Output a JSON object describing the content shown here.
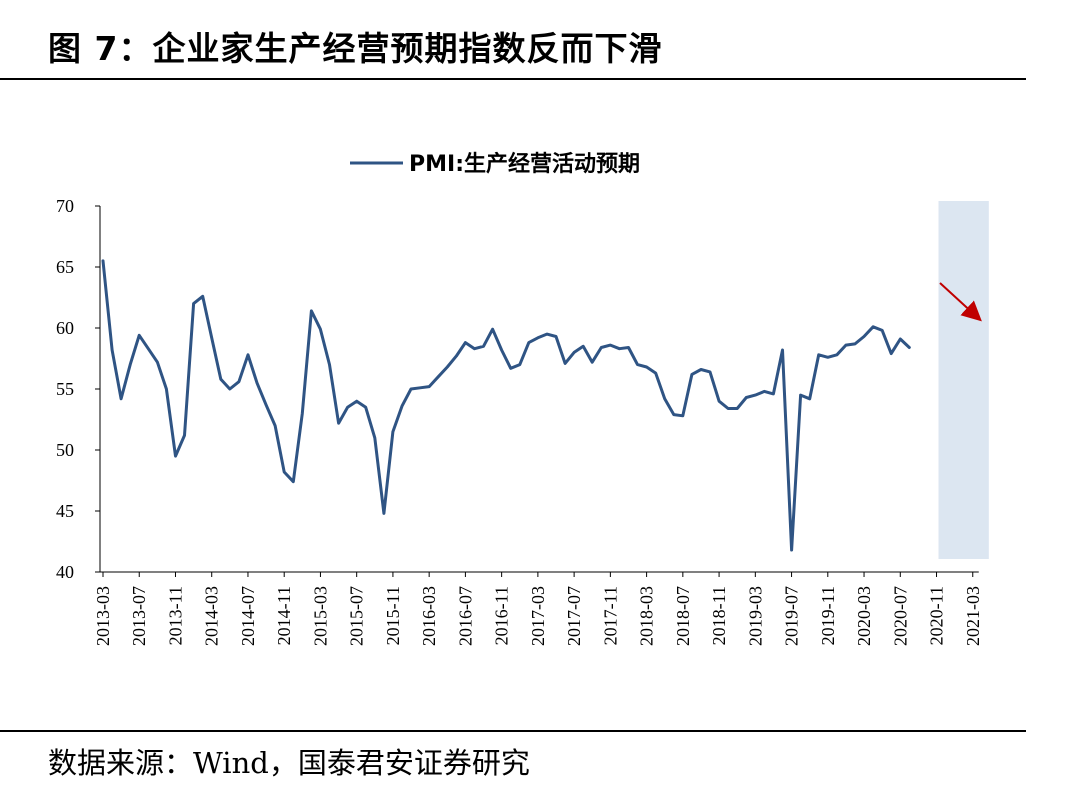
{
  "figure": {
    "title": "图 7：企业家生产经营预期指数反而下滑",
    "source": "数据来源：Wind，国泰君安证券研究"
  },
  "chart_data": {
    "type": "line",
    "title": "",
    "xlabel": "",
    "ylabel": "",
    "ylim": [
      40,
      70
    ],
    "yticks": [
      40,
      45,
      50,
      55,
      60,
      65,
      70
    ],
    "legend_position": "top-center",
    "grid": false,
    "series": [
      {
        "name": "PMI:生产经营活动预期",
        "color": "#2f5484",
        "x": [
          "2013-03",
          "2013-04",
          "2013-05",
          "2013-06",
          "2013-07",
          "2013-08",
          "2013-09",
          "2013-10",
          "2013-11",
          "2013-12",
          "2014-01",
          "2014-02",
          "2014-03",
          "2014-04",
          "2014-05",
          "2014-06",
          "2014-07",
          "2014-08",
          "2014-09",
          "2014-10",
          "2014-11",
          "2014-12",
          "2015-01",
          "2015-02",
          "2015-03",
          "2015-04",
          "2015-05",
          "2015-06",
          "2015-07",
          "2015-08",
          "2015-09",
          "2015-10",
          "2015-11",
          "2015-12",
          "2016-01",
          "2016-02",
          "2016-03",
          "2016-04",
          "2016-05",
          "2016-06",
          "2016-07",
          "2016-08",
          "2016-09",
          "2016-10",
          "2016-11",
          "2016-12",
          "2017-01",
          "2017-02",
          "2017-03",
          "2017-04",
          "2017-05",
          "2017-06",
          "2017-07",
          "2017-08",
          "2017-09",
          "2017-10",
          "2017-11",
          "2017-12",
          "2018-01",
          "2018-02",
          "2018-03",
          "2018-04",
          "2018-05",
          "2018-06",
          "2018-07",
          "2018-08",
          "2018-09",
          "2018-10",
          "2018-11",
          "2018-12",
          "2019-01",
          "2019-02",
          "2019-03",
          "2019-04",
          "2019-05",
          "2019-06",
          "2019-07",
          "2019-08",
          "2019-09",
          "2019-10",
          "2019-11",
          "2019-12",
          "2020-01",
          "2020-02",
          "2020-03",
          "2020-04",
          "2020-05",
          "2020-06",
          "2020-07",
          "2020-08",
          "2020-09",
          "2020-10",
          "2020-11",
          "2020-12",
          "2021-01",
          "2021-02",
          "2021-03",
          "2021-04"
        ],
        "values": [
          65.5,
          58.2,
          54.2,
          57.0,
          59.4,
          58.3,
          57.2,
          55.0,
          49.5,
          51.2,
          62.0,
          62.6,
          59.2,
          55.8,
          55.0,
          55.6,
          57.8,
          55.5,
          53.7,
          52.0,
          48.2,
          47.4,
          53.0,
          61.4,
          59.9,
          57.0,
          52.2,
          53.5,
          54.0,
          53.5,
          51.0,
          44.8,
          51.5,
          53.6,
          55.0,
          55.1,
          55.2,
          56.0,
          56.8,
          57.7,
          58.8,
          58.3,
          58.5,
          59.9,
          58.2,
          56.7,
          57.0,
          58.8,
          59.2,
          59.5,
          59.3,
          57.1,
          58.0,
          58.5,
          57.2,
          58.4,
          58.6,
          58.3,
          58.4,
          57.0,
          56.8,
          56.3,
          54.2,
          52.9,
          52.8,
          56.2,
          56.6,
          56.4,
          54.0,
          53.4,
          53.4,
          54.3,
          54.5,
          54.8,
          54.6,
          58.2,
          41.8,
          54.5,
          54.2,
          57.8,
          57.6,
          57.8,
          58.6,
          58.7,
          59.3,
          60.1,
          59.8,
          57.9,
          59.1,
          58.4,
          null,
          null,
          null,
          null,
          null,
          null,
          null,
          null
        ]
      }
    ],
    "x_tick_labels": [
      "2013-03",
      "2013-07",
      "2013-11",
      "2014-03",
      "2014-07",
      "2014-11",
      "2015-03",
      "2015-07",
      "2015-11",
      "2016-03",
      "2016-07",
      "2016-11",
      "2017-03",
      "2017-07",
      "2017-11",
      "2018-03",
      "2018-07",
      "2018-11",
      "2019-03",
      "2019-07",
      "2019-11",
      "2020-03",
      "2020-07",
      "2020-11",
      "2021-03"
    ],
    "highlight": {
      "from": "2020-11",
      "to": "2021-04",
      "color": "#dce6f1"
    },
    "annotation_arrow": {
      "color": "#c00000",
      "direction": "down-right"
    }
  }
}
